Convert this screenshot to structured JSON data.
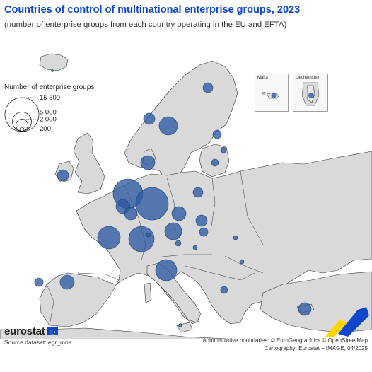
{
  "header": {
    "title": "Countries of control of multinational enterprise groups, 2023",
    "subtitle": "(number of enterprise groups from each country operating in the EU and EFTA)"
  },
  "legend": {
    "title": "Number of enterprise groups",
    "entries": [
      {
        "label": "15 500",
        "value": 15500
      },
      {
        "label": "5 000",
        "value": 5000
      },
      {
        "label": "2 000",
        "value": 2000
      },
      {
        "label": "200",
        "value": 200
      }
    ]
  },
  "insets": {
    "malta": "Malta",
    "liechtenstein": "Liechtenstein"
  },
  "colors": {
    "bubble": "#2c5aa0",
    "land": "#d9d9d9",
    "sea": "#ffffff",
    "border": "#333333",
    "title": "#0e47cb",
    "logo_yellow": "#ffd400",
    "logo_blue": "#0e47cb"
  },
  "footer": {
    "brand": "eurostat",
    "source": "Source dataset: egr_mne",
    "admin": "Administrative boundaries: © EuroGeographics © OpenStreetMap",
    "cartography": "Cartography: Eurostat – IMAGE, 04/2025"
  }
}
